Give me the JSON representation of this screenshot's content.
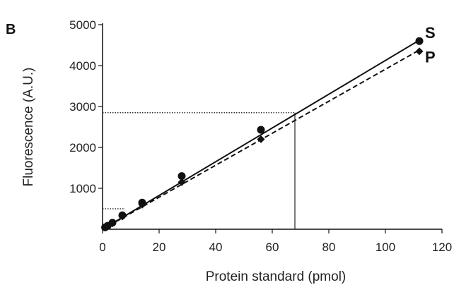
{
  "panel_label": "B",
  "chart_data": {
    "type": "scatter",
    "title": "",
    "xlabel": "Protein standard (pmol)",
    "ylabel": "Fluorescence (A.U.)",
    "xlim": [
      0,
      120
    ],
    "ylim": [
      0,
      5000
    ],
    "xticks": [
      0,
      20,
      40,
      60,
      80,
      100,
      120
    ],
    "yticks": [
      1000,
      2000,
      3000,
      4000,
      5000
    ],
    "grid": false,
    "series": [
      {
        "name": "S",
        "line_style": "solid",
        "x": [
          0.9,
          1.8,
          3.5,
          7,
          14,
          28,
          56,
          112
        ],
        "y": [
          45,
          85,
          160,
          340,
          650,
          1300,
          2430,
          4600
        ]
      },
      {
        "name": "P",
        "line_style": "dashed",
        "x": [
          0.9,
          1.8,
          3.5,
          7,
          14,
          28,
          56,
          112
        ],
        "y": [
          40,
          75,
          145,
          310,
          600,
          1150,
          2200,
          4350
        ]
      }
    ],
    "fit_lines": [
      {
        "series": "S",
        "x": [
          0,
          112
        ],
        "y": [
          0,
          4620
        ]
      },
      {
        "series": "P",
        "x": [
          0,
          112
        ],
        "y": [
          0,
          4380
        ]
      }
    ],
    "reference_lines": [
      {
        "style": "dotted",
        "x": [
          0,
          68
        ],
        "y": [
          2850,
          2850
        ]
      },
      {
        "style": "solid",
        "x": [
          68,
          68
        ],
        "y": [
          0,
          2850
        ]
      },
      {
        "style": "dotted",
        "x": [
          0,
          8
        ],
        "y": [
          500,
          500
        ]
      }
    ]
  }
}
